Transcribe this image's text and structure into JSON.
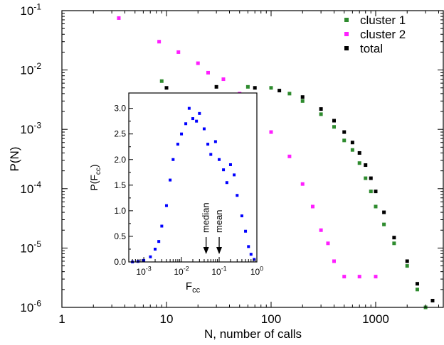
{
  "chart_data": [
    {
      "type": "scatter",
      "xlabel": "N, number of calls",
      "ylabel": "P(N)",
      "x_scale": "log",
      "y_scale": "log",
      "xlim": [
        1,
        4500
      ],
      "ylim": [
        1e-06,
        0.1
      ],
      "x_ticks": [
        {
          "v": 1,
          "label": "1"
        },
        {
          "v": 10,
          "label": "10"
        },
        {
          "v": 100,
          "label": "100"
        },
        {
          "v": 1000,
          "label": "1000"
        }
      ],
      "y_ticks": [
        {
          "v": 0.1,
          "base": "10",
          "exp": "-1"
        },
        {
          "v": 0.01,
          "base": "10",
          "exp": "-2"
        },
        {
          "v": 0.001,
          "base": "10",
          "exp": "-3"
        },
        {
          "v": 0.0001,
          "base": "10",
          "exp": "-4"
        },
        {
          "v": 1e-05,
          "base": "10",
          "exp": "-5"
        },
        {
          "v": 1e-06,
          "base": "10",
          "exp": "-6"
        }
      ],
      "legend_position": "top-right",
      "series": [
        {
          "name": "cluster 1",
          "color": "#2e8b2e",
          "points": [
            [
              9,
              0.0065
            ],
            [
              60,
              0.0052
            ],
            [
              100,
              0.005
            ],
            [
              150,
              0.004
            ],
            [
              200,
              0.003
            ],
            [
              300,
              0.0018
            ],
            [
              400,
              0.0011
            ],
            [
              500,
              0.00065
            ],
            [
              600,
              0.00045
            ],
            [
              700,
              0.00027
            ],
            [
              800,
              0.00015
            ],
            [
              900,
              9e-05
            ],
            [
              1000,
              5e-05
            ],
            [
              1200,
              2.5e-05
            ],
            [
              1500,
              1.2e-05
            ],
            [
              2000,
              5e-06
            ],
            [
              2500,
              2e-06
            ],
            [
              3000,
              1e-06
            ]
          ]
        },
        {
          "name": "cluster 2",
          "color": "#ff1fff",
          "points": [
            [
              3.5,
              0.075
            ],
            [
              8.5,
              0.03
            ],
            [
              13,
              0.02
            ],
            [
              20,
              0.013
            ],
            [
              25,
              0.009
            ],
            [
              35,
              0.007
            ],
            [
              50,
              0.004
            ],
            [
              70,
              0.002
            ],
            [
              100,
              0.0009
            ],
            [
              150,
              0.00035
            ],
            [
              200,
              0.00012
            ],
            [
              250,
              5e-05
            ],
            [
              300,
              2e-05
            ],
            [
              350,
              1.2e-05
            ],
            [
              400,
              6e-06
            ],
            [
              500,
              3.3e-06
            ],
            [
              700,
              3.3e-06
            ],
            [
              1000,
              3.3e-06
            ]
          ]
        },
        {
          "name": "total",
          "color": "#000000",
          "points": [
            [
              10,
              0.005
            ],
            [
              30,
              0.0052
            ],
            [
              70,
              0.005
            ],
            [
              120,
              0.0045
            ],
            [
              200,
              0.0035
            ],
            [
              300,
              0.0022
            ],
            [
              400,
              0.0014
            ],
            [
              500,
              0.0009
            ],
            [
              600,
              0.0006
            ],
            [
              700,
              0.0004
            ],
            [
              800,
              0.00025
            ],
            [
              900,
              0.00015
            ],
            [
              1000,
              9e-05
            ],
            [
              1200,
              4e-05
            ],
            [
              1500,
              1.5e-05
            ],
            [
              2000,
              6e-06
            ],
            [
              2500,
              2.5e-06
            ],
            [
              3500,
              1.3e-06
            ]
          ]
        }
      ]
    },
    {
      "type": "scatter",
      "inset": true,
      "xlabel_main": "F",
      "xlabel_sub": "cc",
      "ylabel_pre": "P(F",
      "ylabel_sub": "cc",
      "ylabel_post": ")",
      "x_scale": "log",
      "xlim": [
        0.0004,
        1
      ],
      "ylim": [
        0,
        3.3
      ],
      "x_ticks": [
        {
          "v": 0.001,
          "base": "10",
          "exp": "-3"
        },
        {
          "v": 0.01,
          "base": "10",
          "exp": "-2"
        },
        {
          "v": 0.1,
          "base": "10",
          "exp": "-1"
        },
        {
          "v": 1,
          "base": "10",
          "exp": "0"
        }
      ],
      "y_ticks": [
        {
          "v": 0,
          "label": "0.0"
        },
        {
          "v": 0.5,
          "label": "0.5"
        },
        {
          "v": 1,
          "label": "1.0"
        },
        {
          "v": 1.5,
          "label": "1.5"
        },
        {
          "v": 2,
          "label": "2.0"
        },
        {
          "v": 2.5,
          "label": "2.5"
        },
        {
          "v": 3,
          "label": "3.0"
        }
      ],
      "series": [
        {
          "color": "#0000ff",
          "points": [
            [
              0.0005,
              0.0
            ],
            [
              0.0007,
              0.01
            ],
            [
              0.001,
              0.03
            ],
            [
              0.0015,
              0.1
            ],
            [
              0.002,
              0.25
            ],
            [
              0.0025,
              0.4
            ],
            [
              0.003,
              0.7
            ],
            [
              0.004,
              1.1
            ],
            [
              0.005,
              1.6
            ],
            [
              0.006,
              2.0
            ],
            [
              0.008,
              2.3
            ],
            [
              0.01,
              2.5
            ],
            [
              0.013,
              2.7
            ],
            [
              0.016,
              3.0
            ],
            [
              0.02,
              2.8
            ],
            [
              0.025,
              2.75
            ],
            [
              0.03,
              2.9
            ],
            [
              0.04,
              2.6
            ],
            [
              0.05,
              2.3
            ],
            [
              0.06,
              2.1
            ],
            [
              0.08,
              2.35
            ],
            [
              0.1,
              2.0
            ],
            [
              0.13,
              1.8
            ],
            [
              0.16,
              1.55
            ],
            [
              0.2,
              1.9
            ],
            [
              0.25,
              1.7
            ],
            [
              0.3,
              1.3
            ],
            [
              0.4,
              0.9
            ],
            [
              0.5,
              0.6
            ],
            [
              0.6,
              0.3
            ],
            [
              0.7,
              0.15
            ],
            [
              0.85,
              0.05
            ]
          ]
        }
      ],
      "annotations": [
        {
          "label": "median",
          "x": 0.045
        },
        {
          "label": "mean",
          "x": 0.1
        }
      ]
    }
  ]
}
